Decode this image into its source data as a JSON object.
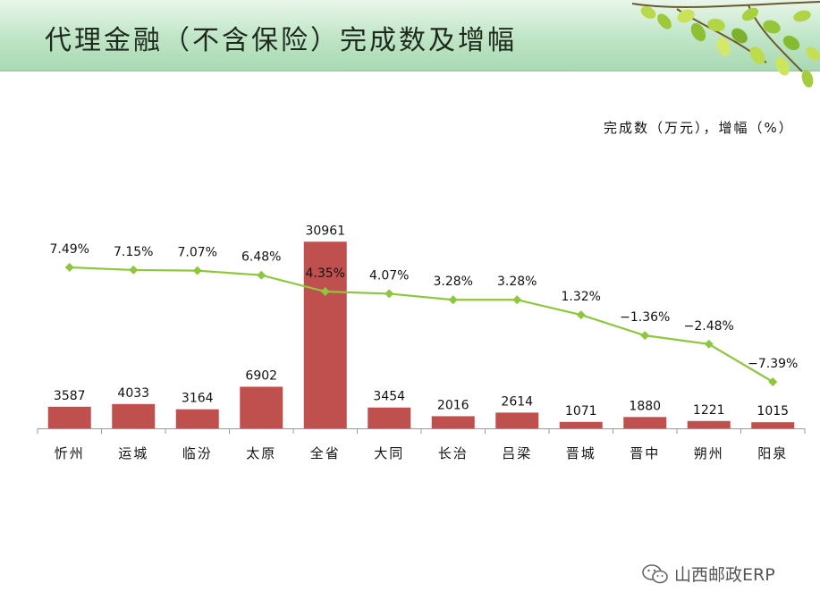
{
  "page": {
    "title": "代理金融（不含保险）完成数及增幅",
    "unit_label": "完成数（万元），增幅（%）",
    "watermark": "山西邮政ERP"
  },
  "chart_data": {
    "type": "bar",
    "title": "代理金融（不含保险）完成数及增幅",
    "ylabel": "完成数（万元），增幅（%）",
    "categories": [
      "忻州",
      "运城",
      "临汾",
      "太原",
      "全省",
      "大同",
      "长治",
      "吕梁",
      "晋城",
      "晋中",
      "朔州",
      "阳泉"
    ],
    "series": [
      {
        "name": "完成数",
        "kind": "bar",
        "color": "#c0504d",
        "values": [
          3587,
          4033,
          3164,
          6902,
          30961,
          3454,
          2016,
          2614,
          1071,
          1880,
          1221,
          1015
        ],
        "labels": [
          "3587",
          "4033",
          "3164",
          "6902",
          "30961",
          "3454",
          "2016",
          "2614",
          "1071",
          "1880",
          "1221",
          "1015"
        ]
      },
      {
        "name": "增幅",
        "kind": "line",
        "color": "#8dc63f",
        "values": [
          7.49,
          7.15,
          7.07,
          6.48,
          4.35,
          4.07,
          3.28,
          3.28,
          1.32,
          -1.36,
          -2.48,
          -7.39
        ],
        "labels": [
          "7.49%",
          "7.15%",
          "7.07%",
          "6.48%",
          "4.35%",
          "4.07%",
          "3.28%",
          "3.28%",
          "1.32%",
          "−1.36%",
          "−2.48%",
          "−7.39%"
        ]
      }
    ],
    "bar_ylim": [
      0,
      31000
    ],
    "line_ylim": [
      -10.7,
      13.7
    ],
    "grid": false,
    "legend": "none"
  }
}
